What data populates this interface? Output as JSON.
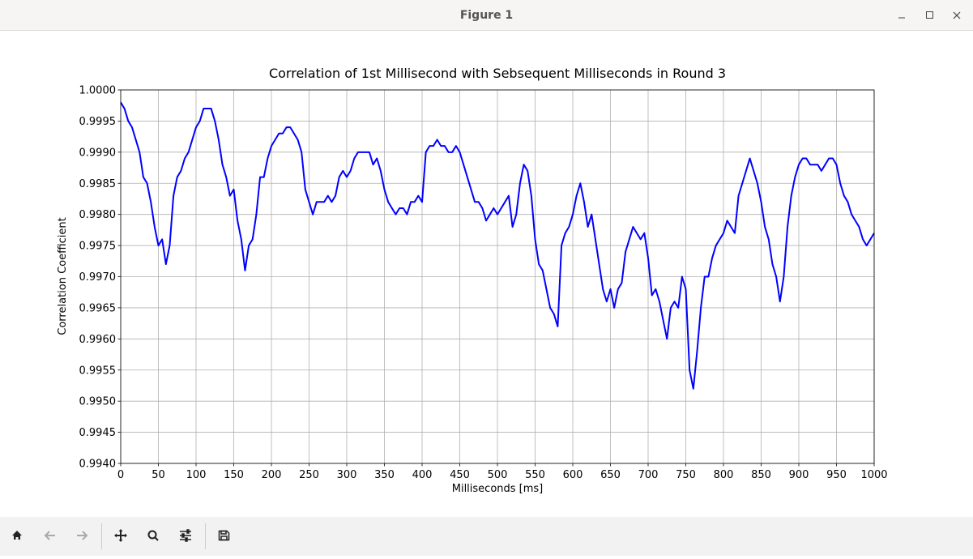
{
  "window": {
    "title": "Figure 1"
  },
  "chart_data": {
    "type": "line",
    "title": "Correlation of 1st Millisecond with Sebsequent Milliseconds in Round 3",
    "x_label": "Milliseconds [ms]",
    "y_label": "Correlation Coefficient",
    "grid": true,
    "xlim": [
      0,
      1000
    ],
    "xticks": [
      0,
      50,
      100,
      150,
      200,
      250,
      300,
      350,
      400,
      450,
      500,
      550,
      600,
      650,
      700,
      750,
      800,
      850,
      900,
      950,
      1000
    ],
    "ylim": [
      0.994,
      1.0
    ],
    "yticks": [
      {
        "value": 0.994,
        "label": "0.9940"
      },
      {
        "value": 0.9945,
        "label": "0.9945"
      },
      {
        "value": 0.995,
        "label": "0.9950"
      },
      {
        "value": 0.9955,
        "label": "0.9955"
      },
      {
        "value": 0.996,
        "label": "0.9960"
      },
      {
        "value": 0.9965,
        "label": "0.9965"
      },
      {
        "value": 0.997,
        "label": "0.9970"
      },
      {
        "value": 0.9975,
        "label": "0.9975"
      },
      {
        "value": 0.998,
        "label": "0.9980"
      },
      {
        "value": 0.9985,
        "label": "0.9985"
      },
      {
        "value": 0.999,
        "label": "0.9990"
      },
      {
        "value": 0.9995,
        "label": "0.9995"
      },
      {
        "value": 1.0,
        "label": "1.0000"
      }
    ],
    "x": [
      0,
      5,
      10,
      15,
      20,
      25,
      30,
      35,
      40,
      45,
      50,
      55,
      60,
      65,
      70,
      75,
      80,
      85,
      90,
      95,
      100,
      105,
      110,
      115,
      120,
      125,
      130,
      135,
      140,
      145,
      150,
      155,
      160,
      165,
      170,
      175,
      180,
      185,
      190,
      195,
      200,
      205,
      210,
      215,
      220,
      225,
      230,
      235,
      240,
      245,
      250,
      255,
      260,
      265,
      270,
      275,
      280,
      285,
      290,
      295,
      300,
      305,
      310,
      315,
      320,
      325,
      330,
      335,
      340,
      345,
      350,
      355,
      360,
      365,
      370,
      375,
      380,
      385,
      390,
      395,
      400,
      405,
      410,
      415,
      420,
      425,
      430,
      435,
      440,
      445,
      450,
      455,
      460,
      465,
      470,
      475,
      480,
      485,
      490,
      495,
      500,
      505,
      510,
      515,
      520,
      525,
      530,
      535,
      540,
      545,
      550,
      555,
      560,
      565,
      570,
      575,
      580,
      585,
      590,
      595,
      600,
      605,
      610,
      615,
      620,
      625,
      630,
      635,
      640,
      645,
      650,
      655,
      660,
      665,
      670,
      675,
      680,
      685,
      690,
      695,
      700,
      705,
      710,
      715,
      720,
      725,
      730,
      735,
      740,
      745,
      750,
      755,
      760,
      765,
      770,
      775,
      780,
      785,
      790,
      795,
      800,
      805,
      810,
      815,
      820,
      825,
      830,
      835,
      840,
      845,
      850,
      855,
      860,
      865,
      870,
      875,
      880,
      885,
      890,
      895,
      900,
      905,
      910,
      915,
      920,
      925,
      930,
      935,
      940,
      945,
      950,
      955,
      960,
      965,
      970,
      975,
      980,
      985,
      990,
      995,
      1000
    ],
    "series": [
      {
        "color": "#0000ff",
        "values": [
          0.9998,
          0.9997,
          0.9995,
          0.9994,
          0.9992,
          0.999,
          0.9986,
          0.9985,
          0.9982,
          0.9978,
          0.9975,
          0.9976,
          0.9972,
          0.9975,
          0.9983,
          0.9986,
          0.9987,
          0.9989,
          0.999,
          0.9992,
          0.9994,
          0.9995,
          0.9997,
          0.9997,
          0.9997,
          0.9995,
          0.9992,
          0.9988,
          0.9986,
          0.9983,
          0.9984,
          0.9979,
          0.9976,
          0.9971,
          0.9975,
          0.9976,
          0.998,
          0.9986,
          0.9986,
          0.9989,
          0.9991,
          0.9992,
          0.9993,
          0.9993,
          0.9994,
          0.9994,
          0.9993,
          0.9992,
          0.999,
          0.9984,
          0.9982,
          0.998,
          0.9982,
          0.9982,
          0.9982,
          0.9983,
          0.9982,
          0.9983,
          0.9986,
          0.9987,
          0.9986,
          0.9987,
          0.9989,
          0.999,
          0.999,
          0.999,
          0.999,
          0.9988,
          0.9989,
          0.9987,
          0.9984,
          0.9982,
          0.9981,
          0.998,
          0.9981,
          0.9981,
          0.998,
          0.9982,
          0.9982,
          0.9983,
          0.9982,
          0.999,
          0.9991,
          0.9991,
          0.9992,
          0.9991,
          0.9991,
          0.999,
          0.999,
          0.9991,
          0.999,
          0.9988,
          0.9986,
          0.9984,
          0.9982,
          0.9982,
          0.9981,
          0.9979,
          0.998,
          0.9981,
          0.998,
          0.9981,
          0.9982,
          0.9983,
          0.9978,
          0.998,
          0.9985,
          0.9988,
          0.9987,
          0.9983,
          0.9976,
          0.9972,
          0.9971,
          0.9968,
          0.9965,
          0.9964,
          0.9962,
          0.9975,
          0.9977,
          0.9978,
          0.998,
          0.9983,
          0.9985,
          0.9982,
          0.9978,
          0.998,
          0.9976,
          0.9972,
          0.9968,
          0.9966,
          0.9968,
          0.9965,
          0.9968,
          0.9969,
          0.9974,
          0.9976,
          0.9978,
          0.9977,
          0.9976,
          0.9977,
          0.9973,
          0.9967,
          0.9968,
          0.9966,
          0.9963,
          0.996,
          0.9965,
          0.9966,
          0.9965,
          0.997,
          0.9968,
          0.9955,
          0.9952,
          0.9958,
          0.9965,
          0.997,
          0.997,
          0.9973,
          0.9975,
          0.9976,
          0.9977,
          0.9979,
          0.9978,
          0.9977,
          0.9983,
          0.9985,
          0.9987,
          0.9989,
          0.9987,
          0.9985,
          0.9982,
          0.9978,
          0.9976,
          0.9972,
          0.997,
          0.9966,
          0.997,
          0.9978,
          0.9983,
          0.9986,
          0.9988,
          0.9989,
          0.9989,
          0.9988,
          0.9988,
          0.9988,
          0.9987,
          0.9988,
          0.9989,
          0.9989,
          0.9988,
          0.9985,
          0.9983,
          0.9982,
          0.998,
          0.9979,
          0.9978,
          0.9976,
          0.9975,
          0.9976,
          0.9977
        ]
      }
    ]
  }
}
